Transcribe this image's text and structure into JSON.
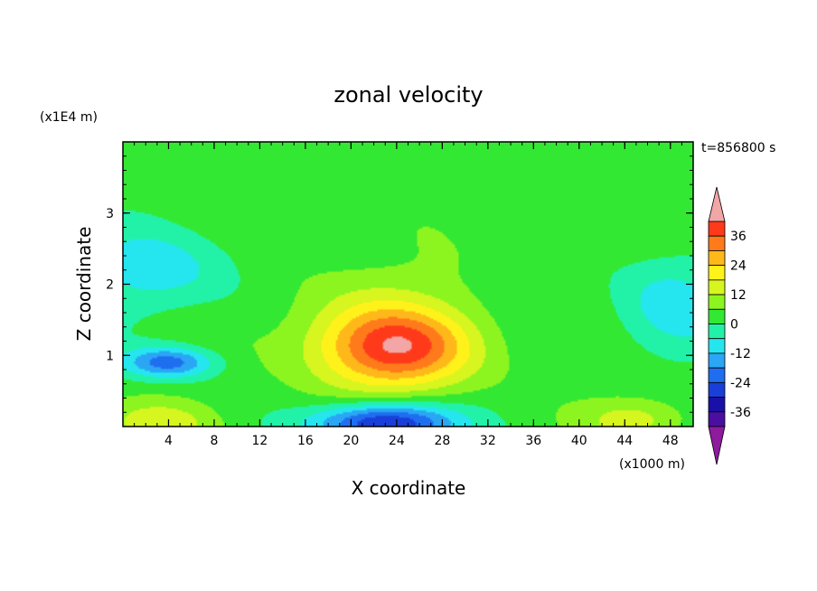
{
  "chart_data": {
    "type": "heatmap",
    "title": "zonal velocity",
    "xlabel": "X coordinate",
    "ylabel": "Z coordinate",
    "x_unit": "(x1000 m)",
    "y_unit": "(x1E4 m)",
    "time_label": "t=856800 s",
    "xlim": [
      0,
      50
    ],
    "ylim": [
      0,
      4
    ],
    "x_ticks": [
      4,
      8,
      12,
      16,
      20,
      24,
      28,
      32,
      36,
      40,
      44,
      48
    ],
    "y_ticks": [
      1,
      2,
      3
    ],
    "colorbar": {
      "ticks": [
        36,
        24,
        12,
        0,
        -12,
        -24,
        -36
      ],
      "levels": [
        -42,
        -36,
        -30,
        -24,
        -18,
        -12,
        -6,
        0,
        6,
        12,
        18,
        24,
        30,
        36,
        42
      ],
      "colors": [
        "#8e1a9e",
        "#4a0fa0",
        "#1a10a8",
        "#1a3fd8",
        "#1f6ef0",
        "#2aa6f5",
        "#25e6ee",
        "#22f2a8",
        "#33e833",
        "#8cf51f",
        "#d7f51f",
        "#fff21a",
        "#ffb81a",
        "#ff7a1a",
        "#ff3a1a",
        "#f2a6a6"
      ]
    },
    "features": [
      {
        "x": 24,
        "z": 1.1,
        "u": 32,
        "sx": 6.5,
        "sz": 0.55
      },
      {
        "x": 22,
        "z": 1.4,
        "u": 8,
        "sx": 9,
        "sz": 0.9
      },
      {
        "x": 23,
        "z": 0.05,
        "u": -36,
        "sx": 6,
        "sz": 0.28
      },
      {
        "x": 4,
        "z": 0.9,
        "u": -24,
        "sx": 4,
        "sz": 0.22
      },
      {
        "x": 3,
        "z": 2.2,
        "u": -12,
        "sx": 7,
        "sz": 0.6
      },
      {
        "x": 48,
        "z": 1.7,
        "u": -12,
        "sx": 5,
        "sz": 0.7
      },
      {
        "x": 3,
        "z": 0.05,
        "u": 12,
        "sx": 5,
        "sz": 0.3
      },
      {
        "x": 45,
        "z": 0.1,
        "u": 12,
        "sx": 4.5,
        "sz": 0.3
      }
    ]
  }
}
